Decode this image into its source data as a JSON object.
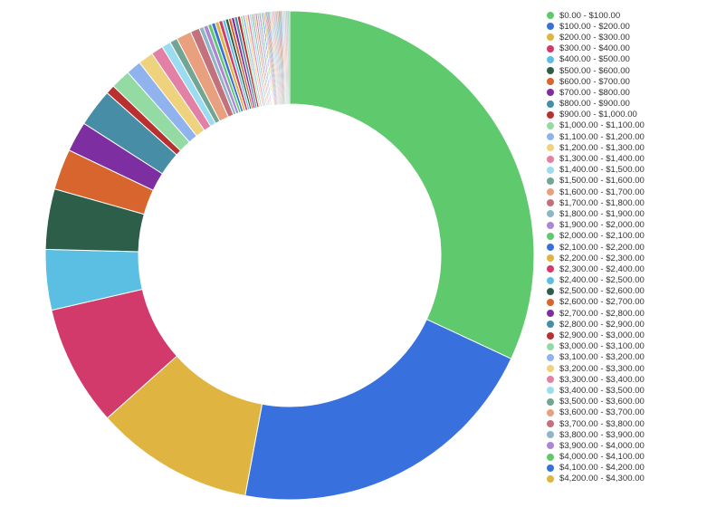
{
  "chart_data": {
    "type": "pie",
    "donut": true,
    "start_angle_deg": 0,
    "direction": "clockwise",
    "legend_position": "right",
    "palette": [
      "#5ec96d",
      "#3871dd",
      "#e0b441",
      "#d23a6c",
      "#5bbfe3",
      "#2d5e4a",
      "#d8652e",
      "#7d2fa1",
      "#468da5",
      "#b8302f",
      "#93dba2",
      "#90b3ee",
      "#efd27e",
      "#e380a6",
      "#9bdcf0",
      "#72a593",
      "#e9a07f",
      "#c3717c",
      "#8eb6c7",
      "#ad86d4"
    ],
    "categories": [
      "$0.00 - $100.00",
      "$100.00 - $200.00",
      "$200.00 - $300.00",
      "$300.00 - $400.00",
      "$400.00 - $500.00",
      "$500.00 - $600.00",
      "$600.00 - $700.00",
      "$700.00 - $800.00",
      "$800.00 - $900.00",
      "$900.00 - $1,000.00",
      "$1,000.00 - $1,100.00",
      "$1,100.00 - $1,200.00",
      "$1,200.00 - $1,300.00",
      "$1,300.00 - $1,400.00",
      "$1,400.00 - $1,500.00",
      "$1,500.00 - $1,600.00",
      "$1,600.00 - $1,700.00",
      "$1,700.00 - $1,800.00",
      "$1,800.00 - $1,900.00",
      "$1,900.00 - $2,000.00",
      "$2,000.00 - $2,100.00",
      "$2,100.00 - $2,200.00",
      "$2,200.00 - $2,300.00",
      "$2,300.00 - $2,400.00",
      "$2,400.00 - $2,500.00",
      "$2,500.00 - $2,600.00",
      "$2,600.00 - $2,700.00",
      "$2,700.00 - $2,800.00",
      "$2,800.00 - $2,900.00",
      "$2,900.00 - $3,000.00",
      "$3,000.00 - $3,100.00",
      "$3,100.00 - $3,200.00",
      "$3,200.00 - $3,300.00",
      "$3,300.00 - $3,400.00",
      "$3,400.00 - $3,500.00",
      "$3,500.00 - $3,600.00",
      "$3,600.00 - $3,700.00",
      "$3,700.00 - $3,800.00",
      "$3,800.00 - $3,900.00",
      "$3,900.00 - $4,000.00",
      "$4,000.00 - $4,100.00",
      "$4,100.00 - $4,200.00",
      "$4,200.00 - $4,300.00"
    ],
    "values": [
      32.0,
      21.0,
      10.5,
      8.0,
      4.0,
      4.0,
      2.7,
      2.0,
      2.5,
      0.6,
      1.3,
      1.0,
      1.0,
      0.8,
      0.6,
      0.5,
      1.0,
      0.6,
      0.3,
      0.3,
      0.25,
      0.25,
      0.25,
      0.25,
      0.2,
      0.2,
      0.2,
      0.2,
      0.2,
      0.2,
      0.15,
      0.15,
      0.15,
      0.15,
      0.15,
      0.12,
      0.12,
      0.12,
      0.12,
      0.12,
      0.1,
      0.1,
      0.1
    ],
    "tail_slices": {
      "count": 40,
      "each": 0.04
    }
  }
}
